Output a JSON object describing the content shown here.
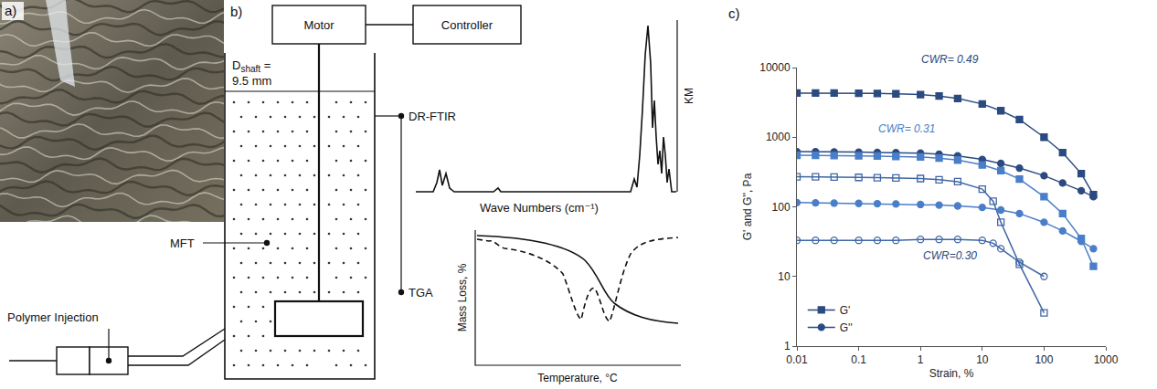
{
  "panels": {
    "a": {
      "label": "a)"
    },
    "b": {
      "label": "b)",
      "motor": "Motor",
      "controller": "Controller",
      "shaft_label": {
        "main": "D",
        "subscript": "shaft",
        "rest": "=",
        "value": "9.5 mm"
      },
      "mft": "MFT",
      "polymer_injection": "Polymer Injection",
      "drftir": "DR-FTIR",
      "spectrum_y_label": "KM",
      "spectrum_x_label": "Wave Numbers (cm⁻¹)",
      "tga": "TGA",
      "tga_y_label": "Mass Loss, %",
      "tga_x_label": "Temperature, °C"
    },
    "c": {
      "label": "c)"
    }
  },
  "chart_data": {
    "type": "line",
    "x_label": "Strain, %",
    "y_label": "G' and G'', Pa",
    "log": true,
    "grid": false,
    "legend": "lower left",
    "xlim": [
      0.01,
      1000
    ],
    "xticks": [
      0.01,
      0.1,
      1,
      10,
      100,
      1000
    ],
    "ylim": [
      1,
      10000
    ],
    "yticks": [
      1,
      10,
      100,
      1000,
      10000
    ],
    "series": [
      {
        "name": "G'",
        "color": "#2b4a80",
        "marker": "square",
        "line_style": "solid",
        "x": [
          0.01,
          0.02,
          0.04,
          0.1,
          0.2,
          0.4,
          1,
          2,
          4,
          10,
          20,
          40,
          100,
          200,
          400,
          630
        ],
        "values": [
          4300,
          4300,
          4300,
          4280,
          4250,
          4200,
          4100,
          3900,
          3600,
          3000,
          2400,
          1800,
          1000,
          600,
          300,
          150
        ]
      },
      {
        "name": "G''",
        "color": "#2b4a80",
        "marker": "circle",
        "line_style": "solid",
        "x": [
          0.01,
          0.02,
          0.04,
          0.1,
          0.2,
          0.4,
          1,
          2,
          4,
          10,
          20,
          40,
          100,
          200,
          400,
          630
        ],
        "values": [
          620,
          620,
          615,
          610,
          605,
          600,
          590,
          570,
          540,
          480,
          420,
          360,
          280,
          220,
          170,
          140
        ]
      },
      {
        "name": "G'",
        "color": "#4a7ec8",
        "marker": "square",
        "line_style": "solid",
        "x": [
          0.01,
          0.02,
          0.04,
          0.1,
          0.2,
          0.4,
          1,
          2,
          4,
          10,
          20,
          40,
          100,
          200,
          400,
          630
        ],
        "values": [
          550,
          550,
          545,
          540,
          535,
          530,
          520,
          500,
          470,
          400,
          330,
          250,
          140,
          80,
          35,
          14
        ]
      },
      {
        "name": "G''",
        "color": "#4a7ec8",
        "marker": "circle",
        "line_style": "solid",
        "x": [
          0.01,
          0.02,
          0.04,
          0.1,
          0.2,
          0.4,
          1,
          2,
          4,
          10,
          20,
          40,
          100,
          200,
          400,
          630
        ],
        "values": [
          115,
          114,
          113,
          112,
          111,
          110,
          108,
          106,
          103,
          98,
          90,
          80,
          60,
          45,
          32,
          25
        ]
      },
      {
        "name": "G'",
        "color": "#3f67a6",
        "marker": "square-open",
        "line_style": "solid",
        "x": [
          0.01,
          0.02,
          0.04,
          0.1,
          0.2,
          0.4,
          1,
          2,
          4,
          10,
          15,
          20,
          40,
          100
        ],
        "values": [
          270,
          270,
          268,
          265,
          262,
          260,
          255,
          245,
          230,
          180,
          120,
          60,
          15,
          3
        ]
      },
      {
        "name": "G''",
        "color": "#3f67a6",
        "marker": "circle-open",
        "line_style": "solid",
        "x": [
          0.01,
          0.02,
          0.04,
          0.1,
          0.2,
          0.4,
          1,
          2,
          4,
          10,
          15,
          20,
          40,
          100
        ],
        "values": [
          33,
          33,
          33,
          33,
          33,
          33,
          34,
          34,
          34,
          33,
          30,
          25,
          16,
          10
        ]
      }
    ],
    "annotations": [
      {
        "text": "CWR= 0.49",
        "x": 3,
        "y": 10000,
        "color": "#2b4a80"
      },
      {
        "text": "CWR= 0.31",
        "x": 0.6,
        "y": 1000,
        "color": "#4a7ec8"
      },
      {
        "text": "CWR=0.30",
        "x": 3,
        "y": 15,
        "color": "#2b4a80"
      }
    ]
  }
}
